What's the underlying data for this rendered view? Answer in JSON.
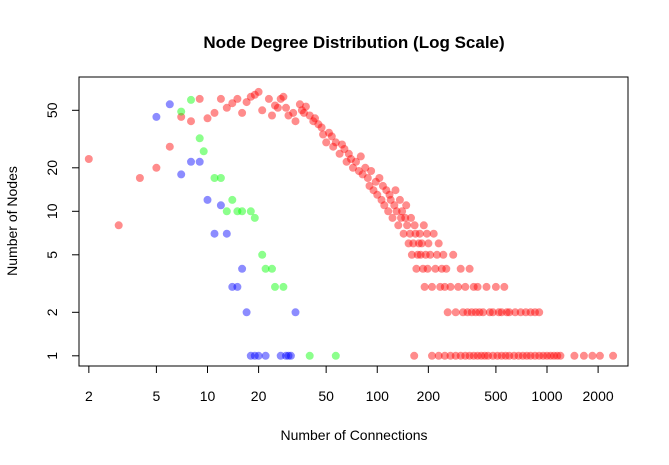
{
  "chart_data": {
    "type": "scatter",
    "title": "Node Degree Distribution (Log Scale)",
    "xlabel": "Number of Connections",
    "ylabel": "Number of Nodes",
    "x_scale": "log",
    "y_scale": "log",
    "xlim": [
      1.75,
      3000
    ],
    "ylim": [
      0.85,
      85
    ],
    "x_ticks": [
      2,
      5,
      10,
      20,
      50,
      100,
      200,
      500,
      1000,
      2000
    ],
    "y_ticks": [
      1,
      2,
      5,
      10,
      20,
      50
    ],
    "grid": false,
    "legend": "none",
    "series": [
      {
        "color": "#FF0000",
        "opacity": 0.45,
        "points": [
          [
            2,
            23
          ],
          [
            3,
            8
          ],
          [
            4,
            17
          ],
          [
            5,
            20
          ],
          [
            6,
            28
          ],
          [
            7,
            45
          ],
          [
            8,
            42
          ],
          [
            9,
            60
          ],
          [
            10,
            44
          ],
          [
            11,
            48
          ],
          [
            12,
            60
          ],
          [
            13,
            52
          ],
          [
            14,
            56
          ],
          [
            15,
            60
          ],
          [
            16,
            48
          ],
          [
            17,
            57
          ],
          [
            18,
            62
          ],
          [
            19,
            64
          ],
          [
            20,
            67
          ],
          [
            21,
            50
          ],
          [
            23,
            60
          ],
          [
            24,
            46
          ],
          [
            25,
            54
          ],
          [
            26,
            52
          ],
          [
            27,
            60
          ],
          [
            28,
            62
          ],
          [
            29,
            52
          ],
          [
            30,
            46
          ],
          [
            32,
            48
          ],
          [
            33,
            42
          ],
          [
            35,
            55
          ],
          [
            36,
            50
          ],
          [
            37,
            48
          ],
          [
            38,
            53
          ],
          [
            40,
            46
          ],
          [
            42,
            42
          ],
          [
            43,
            44
          ],
          [
            45,
            40
          ],
          [
            47,
            38
          ],
          [
            48,
            34
          ],
          [
            50,
            30
          ],
          [
            52,
            35
          ],
          [
            54,
            33
          ],
          [
            55,
            28
          ],
          [
            57,
            30
          ],
          [
            60,
            25
          ],
          [
            62,
            29
          ],
          [
            64,
            27
          ],
          [
            66,
            22
          ],
          [
            68,
            25
          ],
          [
            70,
            23
          ],
          [
            72,
            20
          ],
          [
            75,
            22
          ],
          [
            78,
            19
          ],
          [
            80,
            24
          ],
          [
            82,
            18
          ],
          [
            85,
            20
          ],
          [
            88,
            17
          ],
          [
            90,
            15
          ],
          [
            92,
            19
          ],
          [
            95,
            14
          ],
          [
            98,
            16
          ],
          [
            100,
            13
          ],
          [
            103,
            17
          ],
          [
            106,
            12
          ],
          [
            108,
            15
          ],
          [
            110,
            11
          ],
          [
            113,
            14
          ],
          [
            116,
            10
          ],
          [
            118,
            13
          ],
          [
            120,
            12
          ],
          [
            123,
            9
          ],
          [
            126,
            11
          ],
          [
            128,
            14
          ],
          [
            130,
            10
          ],
          [
            133,
            8
          ],
          [
            136,
            12
          ],
          [
            138,
            9
          ],
          [
            140,
            10
          ],
          [
            143,
            7
          ],
          [
            146,
            9
          ],
          [
            148,
            11
          ],
          [
            150,
            8
          ],
          [
            153,
            6
          ],
          [
            156,
            7
          ],
          [
            158,
            9
          ],
          [
            160,
            5
          ],
          [
            163,
            6
          ],
          [
            166,
            8
          ],
          [
            168,
            7
          ],
          [
            170,
            4
          ],
          [
            173,
            5
          ],
          [
            176,
            6
          ],
          [
            178,
            7
          ],
          [
            180,
            5
          ],
          [
            183,
            6
          ],
          [
            186,
            4
          ],
          [
            188,
            8
          ],
          [
            190,
            3
          ],
          [
            193,
            5
          ],
          [
            196,
            7
          ],
          [
            198,
            4
          ],
          [
            200,
            6
          ],
          [
            205,
            5
          ],
          [
            210,
            3
          ],
          [
            215,
            7
          ],
          [
            220,
            4
          ],
          [
            225,
            5
          ],
          [
            230,
            6
          ],
          [
            235,
            3
          ],
          [
            240,
            4
          ],
          [
            245,
            5
          ],
          [
            250,
            3
          ],
          [
            255,
            4
          ],
          [
            260,
            2
          ],
          [
            270,
            3
          ],
          [
            280,
            5
          ],
          [
            290,
            2
          ],
          [
            300,
            3
          ],
          [
            310,
            4
          ],
          [
            320,
            2
          ],
          [
            330,
            3
          ],
          [
            340,
            2
          ],
          [
            350,
            4
          ],
          [
            360,
            2
          ],
          [
            370,
            3
          ],
          [
            380,
            2
          ],
          [
            390,
            3
          ],
          [
            400,
            2
          ],
          [
            420,
            2
          ],
          [
            440,
            3
          ],
          [
            460,
            2
          ],
          [
            480,
            2
          ],
          [
            500,
            3
          ],
          [
            520,
            2
          ],
          [
            540,
            2
          ],
          [
            560,
            3
          ],
          [
            580,
            2
          ],
          [
            600,
            2
          ],
          [
            650,
            2
          ],
          [
            700,
            2
          ],
          [
            750,
            2
          ],
          [
            800,
            2
          ],
          [
            850,
            2
          ],
          [
            900,
            2
          ],
          [
            210,
            1
          ],
          [
            230,
            1
          ],
          [
            250,
            1
          ],
          [
            270,
            1
          ],
          [
            290,
            1
          ],
          [
            310,
            1
          ],
          [
            330,
            1
          ],
          [
            350,
            1
          ],
          [
            370,
            1
          ],
          [
            390,
            1
          ],
          [
            410,
            1
          ],
          [
            430,
            1
          ],
          [
            450,
            1
          ],
          [
            480,
            1
          ],
          [
            510,
            1
          ],
          [
            540,
            1
          ],
          [
            570,
            1
          ],
          [
            600,
            1
          ],
          [
            640,
            1
          ],
          [
            680,
            1
          ],
          [
            720,
            1
          ],
          [
            760,
            1
          ],
          [
            800,
            1
          ],
          [
            850,
            1
          ],
          [
            900,
            1
          ],
          [
            950,
            1
          ],
          [
            1000,
            1
          ],
          [
            1050,
            1
          ],
          [
            1100,
            1
          ],
          [
            1150,
            1
          ],
          [
            1200,
            1
          ],
          [
            1450,
            1
          ],
          [
            1650,
            1
          ],
          [
            1850,
            1
          ],
          [
            2050,
            1
          ],
          [
            2450,
            1
          ],
          [
            165,
            1
          ]
        ]
      },
      {
        "color": "#00FF00",
        "opacity": 0.45,
        "points": [
          [
            7,
            49
          ],
          [
            8,
            59
          ],
          [
            9,
            32
          ],
          [
            9.5,
            26
          ],
          [
            11,
            17
          ],
          [
            12,
            17
          ],
          [
            13,
            10
          ],
          [
            14,
            12
          ],
          [
            15,
            10
          ],
          [
            16,
            10
          ],
          [
            18,
            10
          ],
          [
            19,
            9
          ],
          [
            21,
            5
          ],
          [
            22,
            4
          ],
          [
            24,
            4
          ],
          [
            25,
            3
          ],
          [
            28,
            3
          ],
          [
            40,
            1
          ],
          [
            57,
            1
          ]
        ]
      },
      {
        "color": "#0000FF",
        "opacity": 0.45,
        "points": [
          [
            5,
            45
          ],
          [
            6,
            55
          ],
          [
            7,
            18
          ],
          [
            8,
            22
          ],
          [
            9,
            22
          ],
          [
            10,
            12
          ],
          [
            11,
            7
          ],
          [
            12,
            11
          ],
          [
            13,
            7
          ],
          [
            14,
            3
          ],
          [
            15,
            3
          ],
          [
            16,
            4
          ],
          [
            17,
            2
          ],
          [
            18,
            1
          ],
          [
            19,
            1
          ],
          [
            20,
            1
          ],
          [
            22,
            1
          ],
          [
            27,
            1
          ],
          [
            29,
            1
          ],
          [
            30,
            1
          ],
          [
            31,
            1
          ],
          [
            33,
            2
          ]
        ]
      }
    ]
  }
}
